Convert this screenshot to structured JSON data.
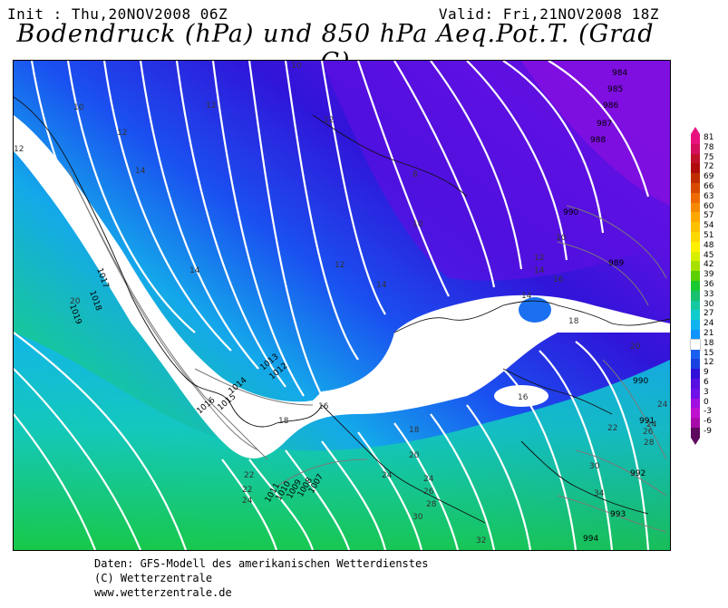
{
  "header": {
    "init": "Init : Thu,20NOV2008 06Z",
    "valid": "Valid: Fri,21NOV2008 18Z",
    "title": "Bodendruck (hPa) und 850 hPa Aeq.Pot.T. (Grad C)"
  },
  "footer": {
    "line1": "Daten: GFS-Modell des amerikanischen Wetterdienstes",
    "line2": "(C) Wetterzentrale",
    "line3": "www.wetterzentrale.de"
  },
  "legend": {
    "levels": [
      {
        "label": "81",
        "color": "#e8127f"
      },
      {
        "label": "78",
        "color": "#d40f5c"
      },
      {
        "label": "75",
        "color": "#c0102a"
      },
      {
        "label": "72",
        "color": "#b00c0c"
      },
      {
        "label": "69",
        "color": "#c02d00"
      },
      {
        "label": "66",
        "color": "#d84a00"
      },
      {
        "label": "63",
        "color": "#ee6a00"
      },
      {
        "label": "60",
        "color": "#f58a00"
      },
      {
        "label": "57",
        "color": "#ffa800"
      },
      {
        "label": "54",
        "color": "#ffc000"
      },
      {
        "label": "51",
        "color": "#ffd800"
      },
      {
        "label": "48",
        "color": "#fff000"
      },
      {
        "label": "45",
        "color": "#d8f000"
      },
      {
        "label": "42",
        "color": "#a8e000"
      },
      {
        "label": "39",
        "color": "#5cd000"
      },
      {
        "label": "36",
        "color": "#1ac830"
      },
      {
        "label": "33",
        "color": "#19c070"
      },
      {
        "label": "30",
        "color": "#15c8a0"
      },
      {
        "label": "27",
        "color": "#10cccc"
      },
      {
        "label": "24",
        "color": "#10b4ee"
      },
      {
        "label": "21",
        "color": "#1094ff"
      },
      {
        "label": "18",
        "color": "#ffffff"
      },
      {
        "label": "15",
        "color": "#1a60f0"
      },
      {
        "label": "12",
        "color": "#1a40e0"
      },
      {
        "label": "9",
        "color": "#3010d8"
      },
      {
        "label": "6",
        "color": "#5810e0"
      },
      {
        "label": "3",
        "color": "#7010e8"
      },
      {
        "label": "0",
        "color": "#a010e0"
      },
      {
        "label": "-3",
        "color": "#c010d0"
      },
      {
        "label": "-6",
        "color": "#a80ca8"
      },
      {
        "label": "-9",
        "color": "#5e0a5e"
      }
    ]
  },
  "map": {
    "pressure_labels": [
      "984",
      "985",
      "986",
      "987",
      "988",
      "990",
      "989",
      "990",
      "991",
      "992",
      "993",
      "994",
      "1007",
      "1008",
      "1009",
      "1010",
      "1011",
      "1012",
      "1013",
      "1014",
      "1015",
      "1016",
      "1017",
      "1018",
      "1019"
    ],
    "theta_labels": [
      "10",
      "12",
      "14",
      "12",
      "10",
      "12",
      "14",
      "14",
      "12",
      "16",
      "10",
      "18",
      "20",
      "20",
      "24",
      "18",
      "22",
      "24",
      "22",
      "26",
      "28",
      "30",
      "34",
      "32",
      "30",
      "24",
      "24",
      "20",
      "28",
      "26",
      "22",
      "24",
      "18",
      "16",
      "12",
      "14",
      "8",
      "10",
      "12",
      "14",
      "16"
    ]
  }
}
